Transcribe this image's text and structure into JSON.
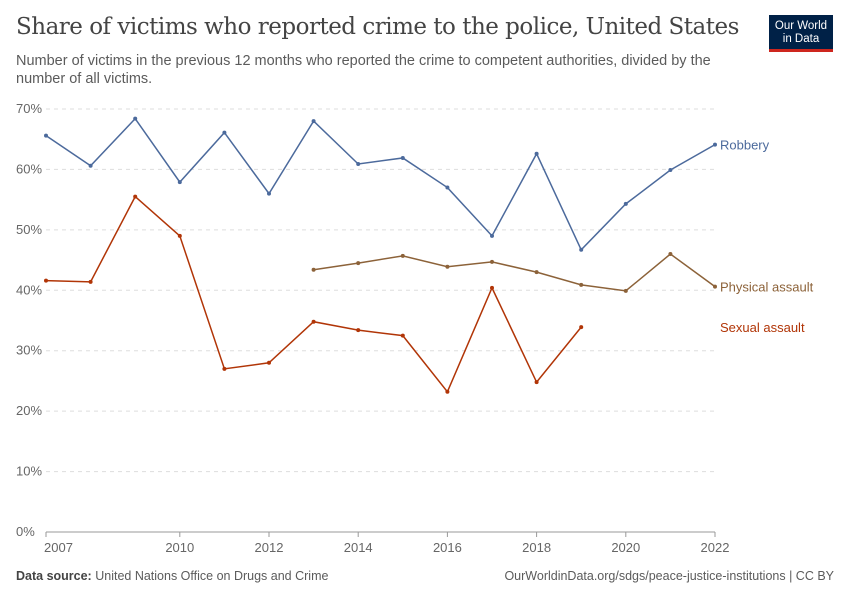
{
  "title": "Share of victims who reported crime to the police, United States",
  "subtitle": "Number of victims in the previous 12 months who reported the crime to competent authorities, divided by the number of all victims.",
  "logo": {
    "line1": "Our World",
    "line2": "in Data"
  },
  "footer": {
    "source_label": "Data source:",
    "source": "United Nations Office on Drugs and Crime",
    "url": "OurWorldinData.org/sdgs/peace-justice-institutions | CC BY"
  },
  "chart_data": {
    "type": "line",
    "xlim": [
      2007,
      2022
    ],
    "ylim": [
      0,
      70
    ],
    "grid": true,
    "x_ticks": [
      2007,
      2010,
      2012,
      2014,
      2016,
      2018,
      2020,
      2022
    ],
    "y_ticks": [
      "0%",
      "10%",
      "20%",
      "30%",
      "40%",
      "50%",
      "60%",
      "70%"
    ],
    "legend": "right-inline-labels",
    "series": [
      {
        "name": "Robbery",
        "color": "#4c6a9c",
        "x": [
          2007,
          2008,
          2009,
          2010,
          2011,
          2012,
          2013,
          2014,
          2015,
          2016,
          2017,
          2018,
          2019,
          2020,
          2021,
          2022
        ],
        "values": [
          65.6,
          60.6,
          68.4,
          57.9,
          66.1,
          56.0,
          68.0,
          60.9,
          61.9,
          57.0,
          49.0,
          62.6,
          46.7,
          54.3,
          59.9,
          64.1
        ]
      },
      {
        "name": "Physical assault",
        "color": "#8c6239",
        "x": [
          2013,
          2014,
          2015,
          2016,
          2017,
          2018,
          2019,
          2020,
          2021,
          2022
        ],
        "values": [
          43.4,
          44.5,
          45.7,
          43.9,
          44.7,
          43.0,
          40.9,
          39.9,
          46.0,
          40.6
        ]
      },
      {
        "name": "Sexual assault",
        "color": "#b13507",
        "x": [
          2007,
          2008,
          2009,
          2010,
          2011,
          2012,
          2013,
          2014,
          2015,
          2016,
          2017,
          2018,
          2019
        ],
        "values": [
          41.6,
          41.4,
          55.5,
          49.0,
          27.0,
          28.0,
          34.8,
          33.4,
          32.5,
          23.2,
          40.4,
          24.8,
          33.9
        ]
      }
    ]
  }
}
